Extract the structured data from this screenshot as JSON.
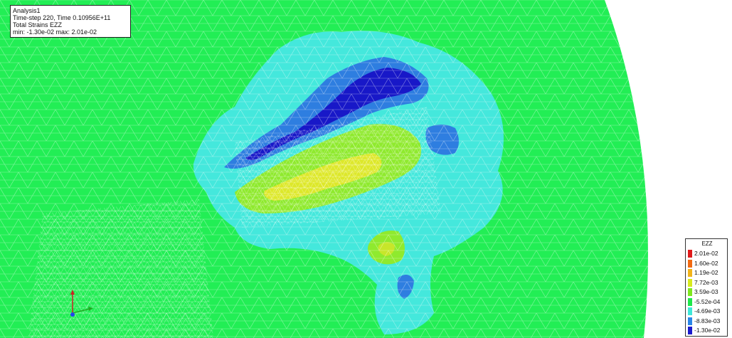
{
  "info": {
    "analysis": "Analysis1",
    "timestep": "Time-step 220, Time 0.10956E+11",
    "result": "Total Strains EZZ",
    "range": "min: -1.30e-02 max: 2.01e-02"
  },
  "legend": {
    "title": "EZZ",
    "entries": [
      {
        "label": "2.01e-02",
        "color": "#e01a1a"
      },
      {
        "label": "1.60e-02",
        "color": "#f26a12"
      },
      {
        "label": "1.19e-02",
        "color": "#f2b41a"
      },
      {
        "label": "7.72e-03",
        "color": "#d8ea1e"
      },
      {
        "label": "3.59e-03",
        "color": "#7fe81e"
      },
      {
        "label": "-5.52e-04",
        "color": "#1ee84a"
      },
      {
        "label": "-4.69e-03",
        "color": "#3fe8d8"
      },
      {
        "label": "-8.83e-03",
        "color": "#2a86e8"
      },
      {
        "label": "-1.30e-02",
        "color": "#1a1acc"
      }
    ]
  },
  "colors": {
    "background_field": "#22ee55",
    "cyan": "#44e8dc",
    "mid_blue": "#2e7ee0",
    "deep_blue": "#1818c8",
    "yellow": "#dde82a",
    "light_green": "#8fea2e",
    "mesh_lines": "#c8f5d0"
  }
}
